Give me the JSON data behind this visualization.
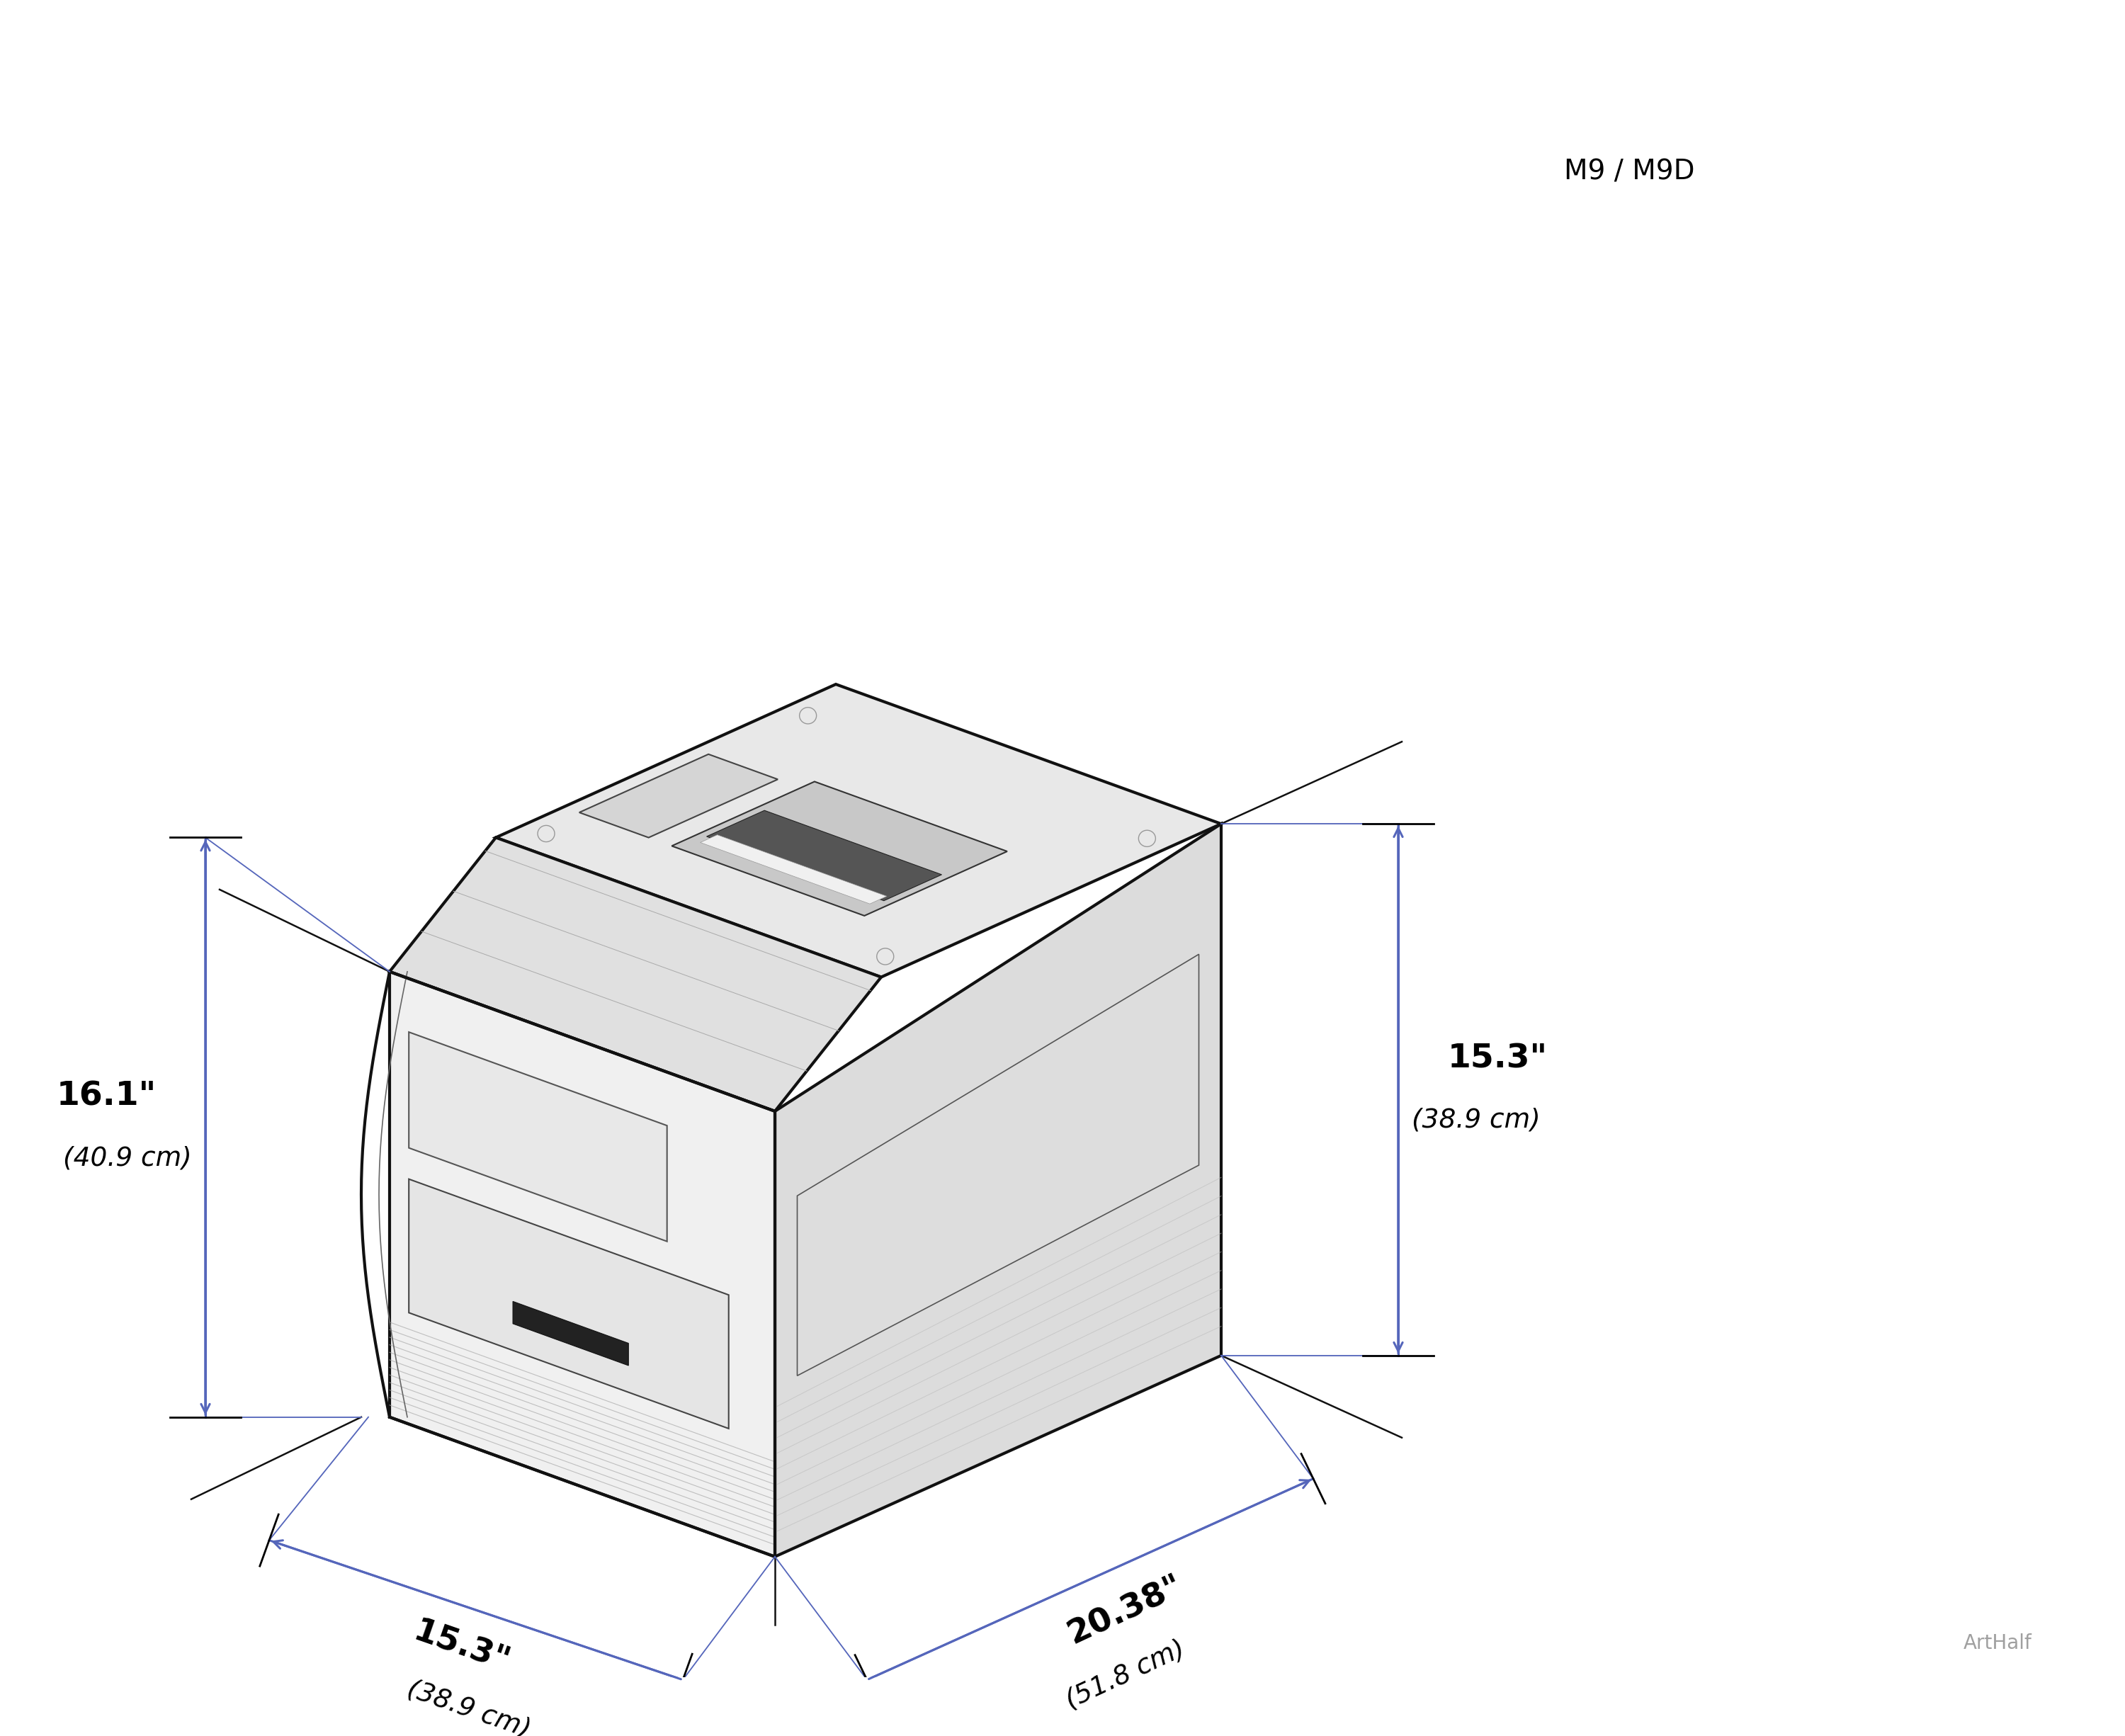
{
  "title": "M9 / M9D",
  "watermark": "ArtHalf",
  "bg_color": "#ffffff",
  "arrow_color": "#5566bb",
  "line_color": "#111111",
  "fig_width": 30.0,
  "fig_height": 24.51,
  "dim_left_label1": "16.1\"",
  "dim_left_label2": "(40.9 cm)",
  "dim_right_label1": "15.3\"",
  "dim_right_label2": "(38.9 cm)",
  "dim_front_label1": "15.3\"",
  "dim_front_label2": "(38.9 cm)",
  "dim_depth_label1": "20.38\"",
  "dim_depth_label2": "(51.8 cm)",
  "device_fill_top": "#e8e8e8",
  "device_fill_front": "#f0f0f0",
  "device_fill_right": "#dcdcdc",
  "device_edge": "#111111",
  "arrow_lw": 2.2,
  "dim_lw": 2.5,
  "device_lw": 3.0,
  "detail_lw": 1.5
}
